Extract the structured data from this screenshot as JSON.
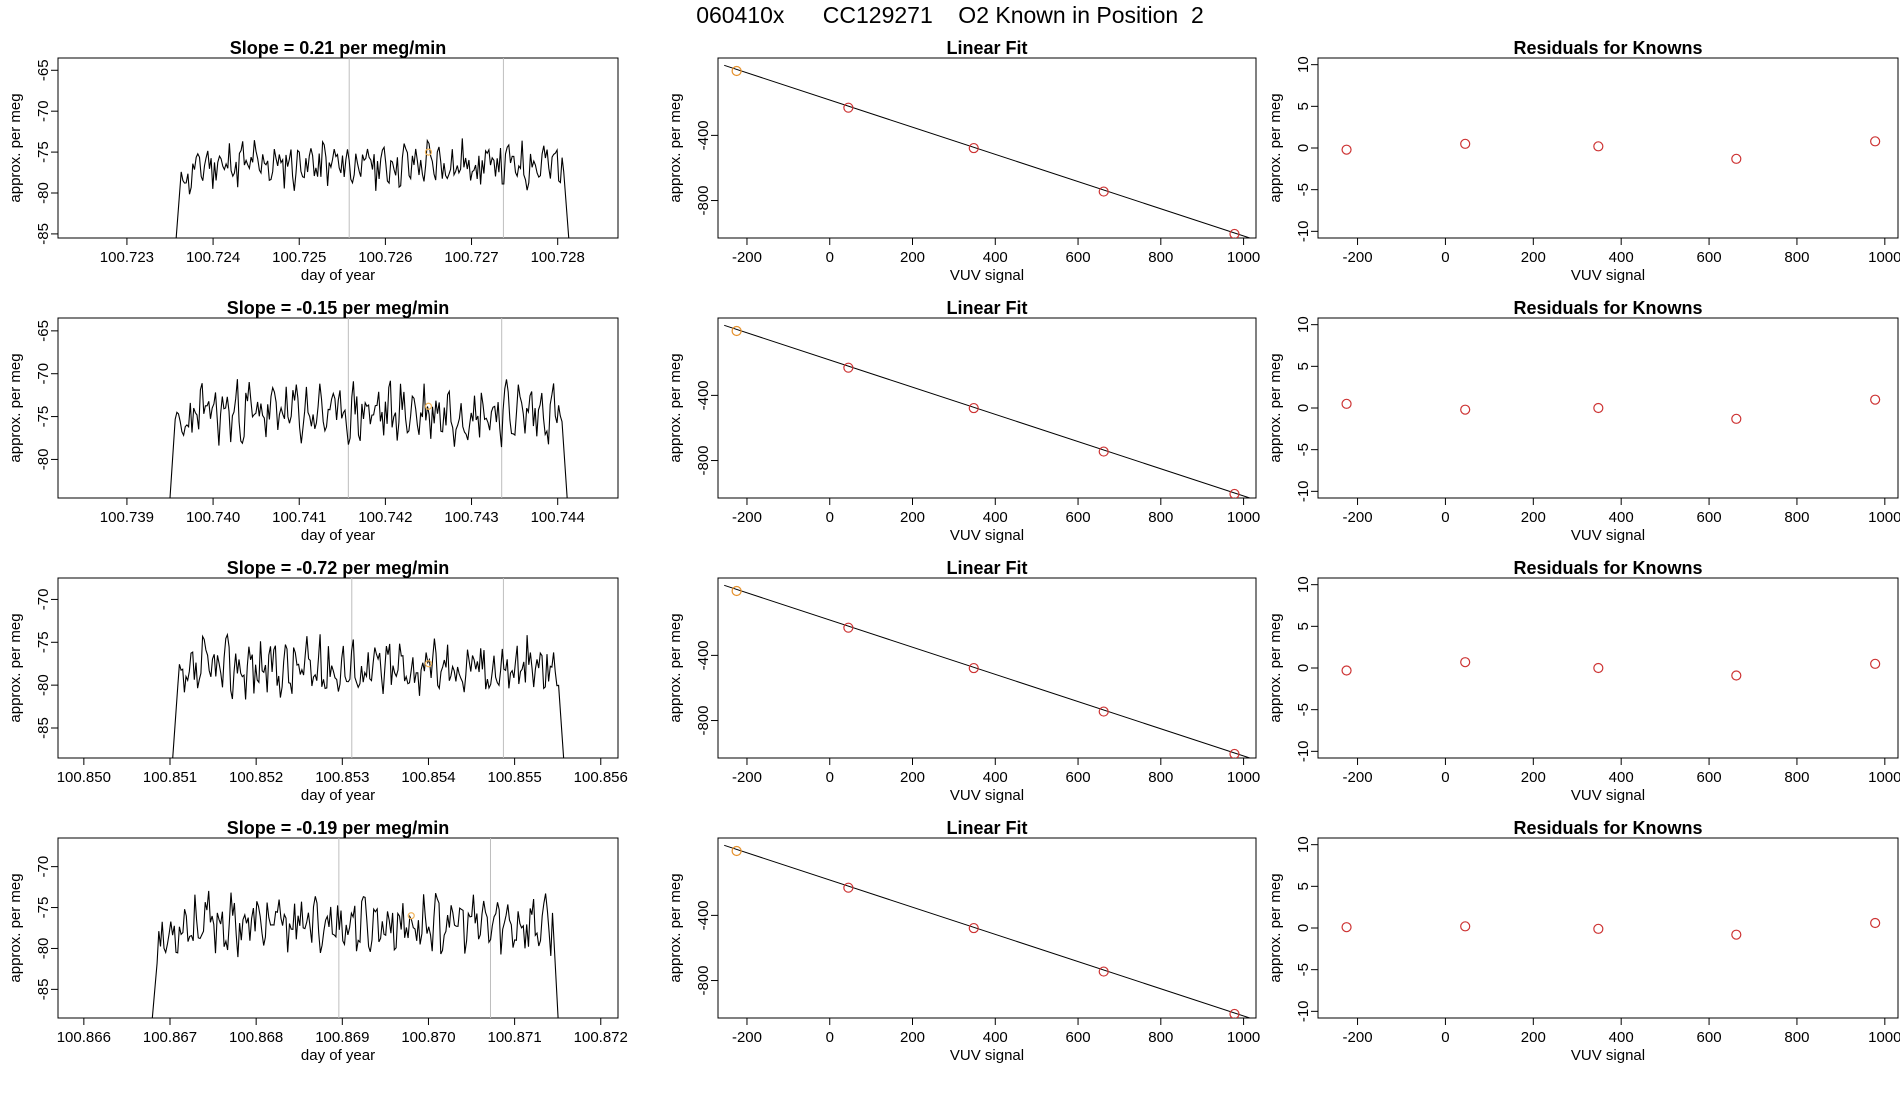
{
  "page_title": "060410x      CC129271    O2 Known in Position  2",
  "colors": {
    "line": "#000000",
    "known_point": "#cd3333",
    "first_point": "#e5902a",
    "marker": "#f2b55a",
    "vline": "#bebebe"
  },
  "chart_data": [
    {
      "type": "line",
      "title": "Slope =  0.21  per meg/min",
      "xlabel": "day of year",
      "ylabel": "approx. per meg",
      "xlim": [
        100.7222,
        100.7287
      ],
      "ylim": [
        -85.5,
        -63.5
      ],
      "xticks": [
        100.723,
        100.724,
        100.725,
        100.726,
        100.727,
        100.728
      ],
      "xtick_labels": [
        "100.723",
        "100.724",
        "100.725",
        "100.726",
        "100.727",
        "100.728"
      ],
      "yticks": [
        -85,
        -80,
        -75,
        -70,
        -65
      ],
      "ytick_labels": [
        "-85",
        "-80",
        "-75",
        "-70",
        "-65"
      ],
      "x_start": 100.72355,
      "x_end": 100.72815,
      "base": -76.5,
      "amp": 2.2,
      "seed": 11,
      "vlines": [
        100.72558,
        100.72737
      ],
      "marker": [
        100.7265,
        -75.0
      ]
    },
    {
      "type": "scatter",
      "title": "Linear Fit",
      "xlabel": "VUV signal",
      "ylabel": "approx. per meg",
      "xlim": [
        -270,
        1030
      ],
      "ylim": [
        -1030,
        75
      ],
      "xticks": [
        -200,
        0,
        200,
        400,
        600,
        800,
        1000
      ],
      "xtick_labels": [
        "-200",
        "0",
        "200",
        "400",
        "600",
        "800",
        "1000"
      ],
      "yticks": [
        -800,
        -400
      ],
      "ytick_labels": [
        "-800",
        "-400"
      ],
      "x": [
        -225,
        45,
        348,
        662,
        978
      ],
      "y": [
        -5,
        -230,
        -478,
        -745,
        -1005
      ],
      "fit": [
        [
          -255,
          30
        ],
        [
          1015,
          -1030
        ]
      ]
    },
    {
      "type": "scatter",
      "title": "Residuals for Knowns",
      "xlabel": "VUV signal",
      "ylabel": "approx. per meg",
      "xlim": [
        -290,
        1030
      ],
      "ylim": [
        -10.8,
        10.8
      ],
      "xticks": [
        -200,
        0,
        200,
        400,
        600,
        800,
        1000
      ],
      "xtick_labels": [
        "-200",
        "0",
        "200",
        "400",
        "600",
        "800",
        "1000"
      ],
      "yticks": [
        -10,
        -5,
        0,
        5,
        10
      ],
      "ytick_labels": [
        "-10",
        "-5",
        "0",
        "5",
        "10"
      ],
      "x": [
        -225,
        45,
        348,
        662,
        978
      ],
      "y": [
        -0.2,
        0.5,
        0.2,
        -1.3,
        0.8
      ]
    },
    {
      "type": "line",
      "title": "Slope =  -0.15  per meg/min",
      "xlabel": "day of year",
      "ylabel": "approx. per meg",
      "xlim": [
        100.7382,
        100.7447
      ],
      "ylim": [
        -84.5,
        -63.5
      ],
      "xticks": [
        100.739,
        100.74,
        100.741,
        100.742,
        100.743,
        100.744
      ],
      "xtick_labels": [
        "100.739",
        "100.740",
        "100.741",
        "100.742",
        "100.743",
        "100.744"
      ],
      "yticks": [
        -80,
        -75,
        -70,
        -65
      ],
      "ytick_labels": [
        "-80",
        "-75",
        "-70",
        "-65"
      ],
      "x_start": 100.73948,
      "x_end": 100.74413,
      "base": -74.5,
      "amp": 2.6,
      "seed": 23,
      "vlines": [
        100.74157,
        100.74335
      ],
      "marker": [
        100.7425,
        -73.8
      ]
    },
    {
      "type": "scatter",
      "title": "Linear Fit",
      "xlabel": "VUV signal",
      "ylabel": "approx. per meg",
      "xlim": [
        -270,
        1030
      ],
      "ylim": [
        -1030,
        75
      ],
      "xticks": [
        -200,
        0,
        200,
        400,
        600,
        800,
        1000
      ],
      "xtick_labels": [
        "-200",
        "0",
        "200",
        "400",
        "600",
        "800",
        "1000"
      ],
      "yticks": [
        -800,
        -400
      ],
      "ytick_labels": [
        "-800",
        "-400"
      ],
      "x": [
        -225,
        45,
        348,
        662,
        978
      ],
      "y": [
        -5,
        -230,
        -478,
        -745,
        -1005
      ],
      "fit": [
        [
          -255,
          30
        ],
        [
          1015,
          -1030
        ]
      ]
    },
    {
      "type": "scatter",
      "title": "Residuals for Knowns",
      "xlabel": "VUV signal",
      "ylabel": "approx. per meg",
      "xlim": [
        -290,
        1030
      ],
      "ylim": [
        -10.8,
        10.8
      ],
      "xticks": [
        -200,
        0,
        200,
        400,
        600,
        800,
        1000
      ],
      "xtick_labels": [
        "-200",
        "0",
        "200",
        "400",
        "600",
        "800",
        "1000"
      ],
      "yticks": [
        -10,
        -5,
        0,
        5,
        10
      ],
      "ytick_labels": [
        "-10",
        "-5",
        "0",
        "5",
        "10"
      ],
      "x": [
        -225,
        45,
        348,
        662,
        978
      ],
      "y": [
        0.5,
        -0.2,
        0.0,
        -1.3,
        1.0
      ]
    },
    {
      "type": "line",
      "title": "Slope =  -0.72  per meg/min",
      "xlabel": "day of year",
      "ylabel": "approx. per meg",
      "xlim": [
        100.8497,
        100.8562
      ],
      "ylim": [
        -88.5,
        -67.5
      ],
      "xticks": [
        100.85,
        100.851,
        100.852,
        100.853,
        100.854,
        100.855,
        100.856
      ],
      "xtick_labels": [
        "100.850",
        "100.851",
        "100.852",
        "100.853",
        "100.854",
        "100.855",
        "100.856"
      ],
      "yticks": [
        -85,
        -80,
        -75,
        -70
      ],
      "ytick_labels": [
        "-85",
        "-80",
        "-75",
        "-70"
      ],
      "x_start": 100.85101,
      "x_end": 100.85559,
      "base": -78.0,
      "amp": 2.6,
      "seed": 37,
      "vlines": [
        100.85311,
        100.85487
      ],
      "marker": [
        100.854,
        -77.5
      ]
    },
    {
      "type": "scatter",
      "title": "Linear Fit",
      "xlabel": "VUV signal",
      "ylabel": "approx. per meg",
      "xlim": [
        -270,
        1030
      ],
      "ylim": [
        -1030,
        75
      ],
      "xticks": [
        -200,
        0,
        200,
        400,
        600,
        800,
        1000
      ],
      "xtick_labels": [
        "-200",
        "0",
        "200",
        "400",
        "600",
        "800",
        "1000"
      ],
      "yticks": [
        -800,
        -400
      ],
      "ytick_labels": [
        "-800",
        "-400"
      ],
      "x": [
        -225,
        45,
        348,
        662,
        978
      ],
      "y": [
        -5,
        -230,
        -478,
        -745,
        -1005
      ],
      "fit": [
        [
          -255,
          30
        ],
        [
          1015,
          -1030
        ]
      ]
    },
    {
      "type": "scatter",
      "title": "Residuals for Knowns",
      "xlabel": "VUV signal",
      "ylabel": "approx. per meg",
      "xlim": [
        -290,
        1030
      ],
      "ylim": [
        -10.8,
        10.8
      ],
      "xticks": [
        -200,
        0,
        200,
        400,
        600,
        800,
        1000
      ],
      "xtick_labels": [
        "-200",
        "0",
        "200",
        "400",
        "600",
        "800",
        "1000"
      ],
      "yticks": [
        -10,
        -5,
        0,
        5,
        10
      ],
      "ytick_labels": [
        "-10",
        "-5",
        "0",
        "5",
        "10"
      ],
      "x": [
        -225,
        45,
        348,
        662,
        978
      ],
      "y": [
        -0.3,
        0.7,
        0.0,
        -0.9,
        0.5
      ]
    },
    {
      "type": "line",
      "title": "Slope =  -0.19  per meg/min",
      "xlabel": "day of year",
      "ylabel": "approx. per meg",
      "xlim": [
        100.8657,
        100.8722
      ],
      "ylim": [
        -88.5,
        -66.5
      ],
      "xticks": [
        100.866,
        100.867,
        100.868,
        100.869,
        100.87,
        100.871,
        100.872
      ],
      "xtick_labels": [
        "100.866",
        "100.867",
        "100.868",
        "100.869",
        "100.870",
        "100.871",
        "100.872"
      ],
      "yticks": [
        -85,
        -80,
        -75,
        -70
      ],
      "ytick_labels": [
        "-85",
        "-80",
        "-75",
        "-70"
      ],
      "x_start": 100.86677,
      "x_end": 100.87152,
      "base": -77.0,
      "amp": 2.6,
      "seed": 53,
      "vlines": [
        100.86896,
        100.87072
      ],
      "marker": [
        100.8698,
        -76.0
      ]
    },
    {
      "type": "scatter",
      "title": "Linear Fit",
      "xlabel": "VUV signal",
      "ylabel": "approx. per meg",
      "xlim": [
        -270,
        1030
      ],
      "ylim": [
        -1030,
        75
      ],
      "xticks": [
        -200,
        0,
        200,
        400,
        600,
        800,
        1000
      ],
      "xtick_labels": [
        "-200",
        "0",
        "200",
        "400",
        "600",
        "800",
        "1000"
      ],
      "yticks": [
        -800,
        -400
      ],
      "ytick_labels": [
        "-800",
        "-400"
      ],
      "x": [
        -225,
        45,
        348,
        662,
        978
      ],
      "y": [
        -5,
        -230,
        -478,
        -745,
        -1005
      ],
      "fit": [
        [
          -255,
          30
        ],
        [
          1015,
          -1030
        ]
      ]
    },
    {
      "type": "scatter",
      "title": "Residuals for Knowns",
      "xlabel": "VUV signal",
      "ylabel": "approx. per meg",
      "xlim": [
        -290,
        1030
      ],
      "ylim": [
        -10.8,
        10.8
      ],
      "xticks": [
        -200,
        0,
        200,
        400,
        600,
        800,
        1000
      ],
      "xtick_labels": [
        "-200",
        "0",
        "200",
        "400",
        "600",
        "800",
        "1000"
      ],
      "yticks": [
        -10,
        -5,
        0,
        5,
        10
      ],
      "ytick_labels": [
        "-10",
        "-5",
        "0",
        "5",
        "10"
      ],
      "x": [
        -225,
        45,
        348,
        662,
        978
      ],
      "y": [
        0.1,
        0.2,
        -0.1,
        -0.8,
        0.6
      ]
    }
  ]
}
